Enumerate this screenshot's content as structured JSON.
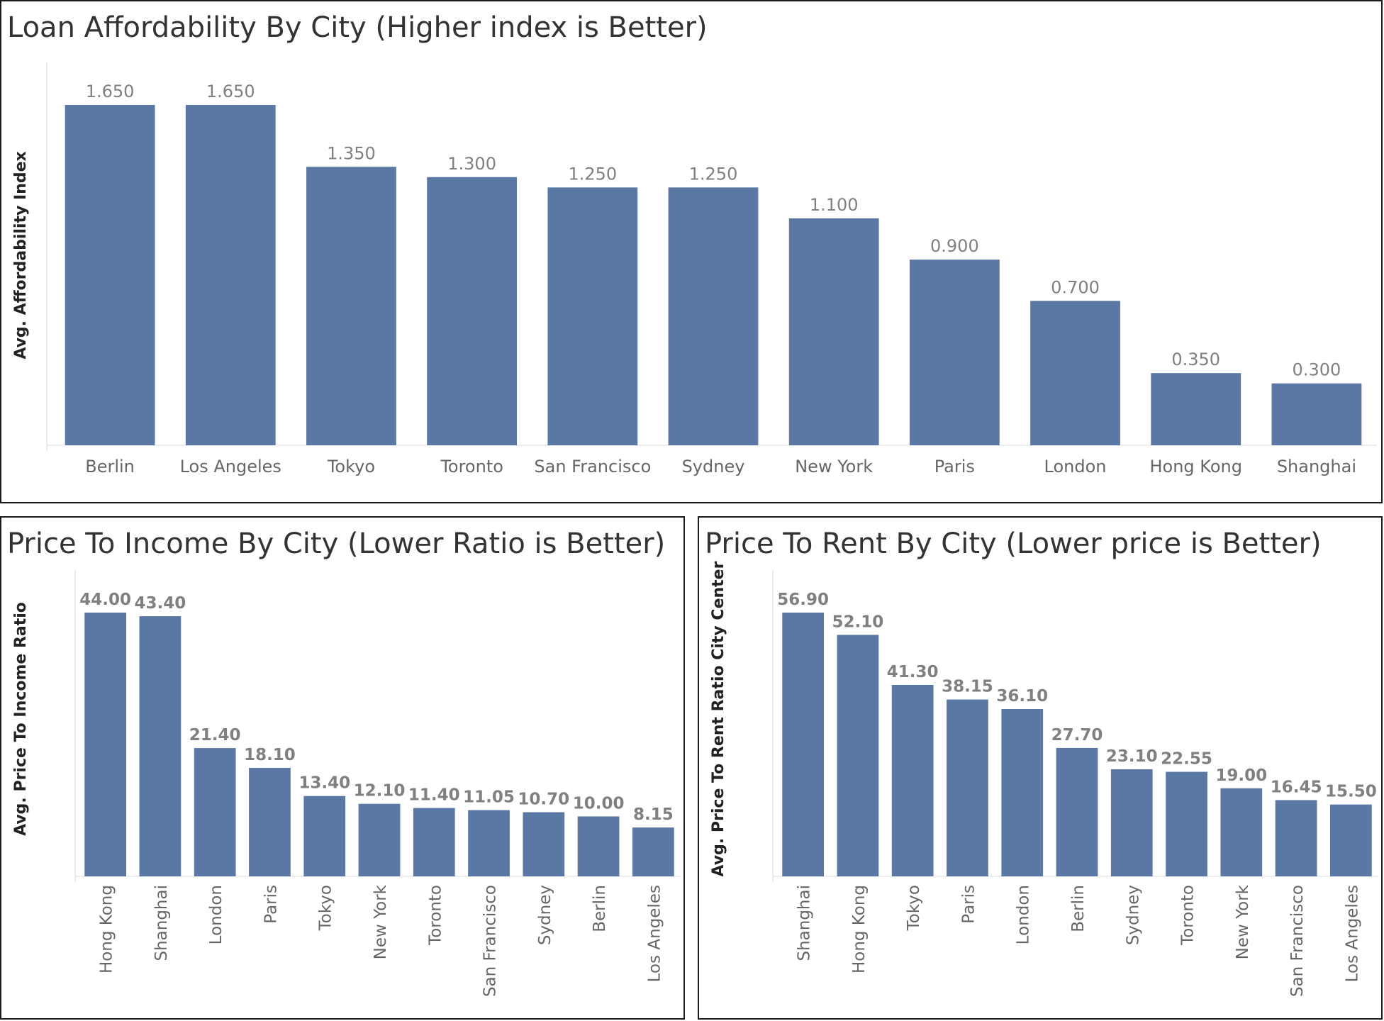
{
  "chart_data": [
    {
      "id": "loan",
      "type": "bar",
      "title": "Loan Affordability By City (Higher index is Better)",
      "xlabel": "",
      "ylabel": "Avg. Affordability Index",
      "categories": [
        "Berlin",
        "Los Angeles",
        "Tokyo",
        "Toronto",
        "San Francisco",
        "Sydney",
        "New York",
        "Paris",
        "London",
        "Hong Kong",
        "Shanghai"
      ],
      "values": [
        1.65,
        1.65,
        1.35,
        1.3,
        1.25,
        1.25,
        1.1,
        0.9,
        0.7,
        0.35,
        0.3
      ],
      "value_labels": [
        "1.650",
        "1.650",
        "1.350",
        "1.300",
        "1.250",
        "1.250",
        "1.100",
        "0.900",
        "0.700",
        "0.350",
        "0.300"
      ],
      "ylim": [
        0,
        1.65
      ],
      "grid": false,
      "color": "#5a78a4"
    },
    {
      "id": "income",
      "type": "bar",
      "title": "Price To Income By City  (Lower Ratio is Better)",
      "xlabel": "",
      "ylabel": "Avg. Price To Income Ratio",
      "categories": [
        "Hong Kong",
        "Shanghai",
        "London",
        "Paris",
        "Tokyo",
        "New York",
        "Toronto",
        "San Francisco",
        "Sydney",
        "Berlin",
        "Los Angeles"
      ],
      "values": [
        44.0,
        43.4,
        21.4,
        18.1,
        13.4,
        12.1,
        11.4,
        11.05,
        10.7,
        10.0,
        8.15
      ],
      "value_labels": [
        "44.00",
        "43.40",
        "21.40",
        "18.10",
        "13.40",
        "12.10",
        "11.40",
        "11.05",
        "10.70",
        "10.00",
        "8.15"
      ],
      "ylim": [
        0,
        44.0
      ],
      "grid": false,
      "color": "#5a78a4"
    },
    {
      "id": "rent",
      "type": "bar",
      "title": "Price To Rent By City (Lower price is Better)",
      "xlabel": "",
      "ylabel": "Avg. Price To Rent Ratio City Center",
      "categories": [
        "Shanghai",
        "Hong Kong",
        "Tokyo",
        "Paris",
        "London",
        "Berlin",
        "Sydney",
        "Toronto",
        "New York",
        "San Francisco",
        "Los Angeles"
      ],
      "values": [
        56.9,
        52.1,
        41.3,
        38.15,
        36.1,
        27.7,
        23.1,
        22.55,
        19.0,
        16.45,
        15.5
      ],
      "value_labels": [
        "56.90",
        "52.10",
        "41.30",
        "38.15",
        "36.10",
        "27.70",
        "23.10",
        "22.55",
        "19.00",
        "16.45",
        "15.50"
      ],
      "ylim": [
        0,
        56.9
      ],
      "grid": false,
      "color": "#5a78a4"
    }
  ]
}
